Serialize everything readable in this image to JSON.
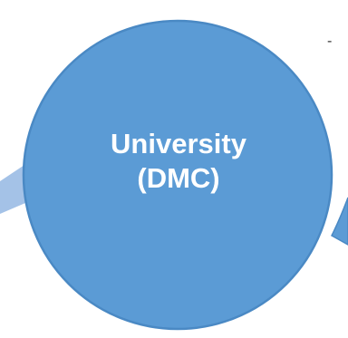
{
  "diagram": {
    "node": {
      "line1": "University",
      "line2": "(DMC)",
      "fill_color": "#5b9bd5",
      "border_color": "#4a89c4",
      "text_color": "#ffffff"
    },
    "connector": {
      "color": "#a4c2e7",
      "shape": "arrow"
    },
    "side_mark": "-"
  }
}
